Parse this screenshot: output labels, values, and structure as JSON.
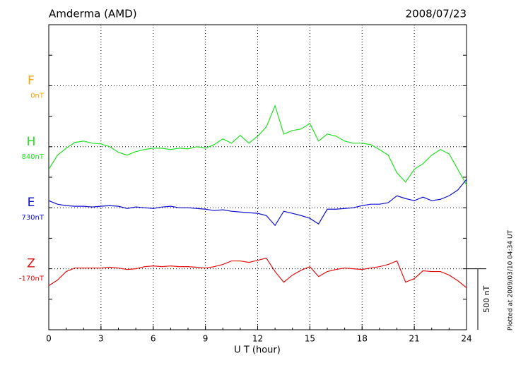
{
  "chart_data": {
    "type": "line",
    "title": "Amderma (AMD)",
    "date": "2008/07/23",
    "xlabel": "U T (hour)",
    "footnote": "Plotted at 2009/03/10 04:34 UT",
    "scale_bar": {
      "value": 500,
      "label": "500 nT"
    },
    "xlim": [
      0,
      24
    ],
    "xticks": [
      0,
      3,
      6,
      9,
      12,
      15,
      18,
      21,
      24
    ],
    "grid": true,
    "x": [
      0,
      0.5,
      1,
      1.5,
      2,
      2.5,
      3,
      3.5,
      4,
      4.5,
      5,
      5.5,
      6,
      6.5,
      7,
      7.5,
      8,
      8.5,
      9,
      9.5,
      10,
      10.5,
      11,
      11.5,
      12,
      12.5,
      13,
      13.5,
      14,
      14.5,
      15,
      15.5,
      16,
      16.5,
      17,
      17.5,
      18,
      18.5,
      19,
      19.5,
      20,
      20.5,
      21,
      21.5,
      22,
      22.5,
      23,
      23.5,
      24
    ],
    "series": [
      {
        "name": "F",
        "color": "#f5a500",
        "offset": {
          "value": 0,
          "label": "0nT"
        },
        "values": [
          null,
          null,
          null,
          null,
          null,
          null,
          null,
          null,
          null,
          null,
          null,
          null,
          null,
          null,
          null,
          null,
          null,
          null,
          null,
          null,
          null,
          null,
          null,
          null,
          null,
          null,
          null,
          null,
          null,
          null,
          null,
          null,
          null,
          null,
          null,
          null,
          null,
          null,
          null,
          null,
          null,
          null,
          null,
          null,
          null,
          null,
          null,
          null,
          null
        ]
      },
      {
        "name": "H",
        "color": "#22e022",
        "offset": {
          "value": 840,
          "label": "840nT"
        },
        "values": [
          655,
          770,
          828,
          875,
          886,
          869,
          863,
          840,
          794,
          771,
          800,
          817,
          828,
          828,
          817,
          828,
          823,
          840,
          828,
          857,
          904,
          869,
          933,
          869,
          927,
          1002,
          1176,
          944,
          973,
          985,
          1031,
          886,
          944,
          927,
          886,
          869,
          869,
          857,
          817,
          771,
          626,
          551,
          655,
          701,
          771,
          817,
          782,
          655,
          527
        ]
      },
      {
        "name": "E",
        "color": "#1010d0",
        "offset": {
          "value": 730,
          "label": "730nT"
        },
        "values": [
          788,
          759,
          747,
          742,
          742,
          736,
          742,
          747,
          742,
          724,
          736,
          730,
          724,
          736,
          742,
          730,
          730,
          724,
          718,
          707,
          713,
          701,
          695,
          689,
          684,
          666,
          585,
          701,
          684,
          666,
          643,
          597,
          718,
          718,
          724,
          730,
          747,
          759,
          759,
          771,
          828,
          805,
          788,
          817,
          788,
          799,
          828,
          875,
          962
        ]
      },
      {
        "name": "Z",
        "color": "#e01010",
        "offset": {
          "value": -170,
          "label": "-170nT"
        },
        "values": [
          -309,
          -263,
          -193,
          -164,
          -164,
          -164,
          -164,
          -158,
          -164,
          -176,
          -170,
          -153,
          -147,
          -153,
          -147,
          -153,
          -153,
          -158,
          -164,
          -153,
          -135,
          -106,
          -106,
          -118,
          -101,
          -83,
          -193,
          -280,
          -222,
          -182,
          -153,
          -234,
          -193,
          -176,
          -164,
          -170,
          -176,
          -164,
          -153,
          -135,
          -106,
          -280,
          -251,
          -187,
          -193,
          -193,
          -222,
          -268,
          -326
        ]
      }
    ]
  }
}
